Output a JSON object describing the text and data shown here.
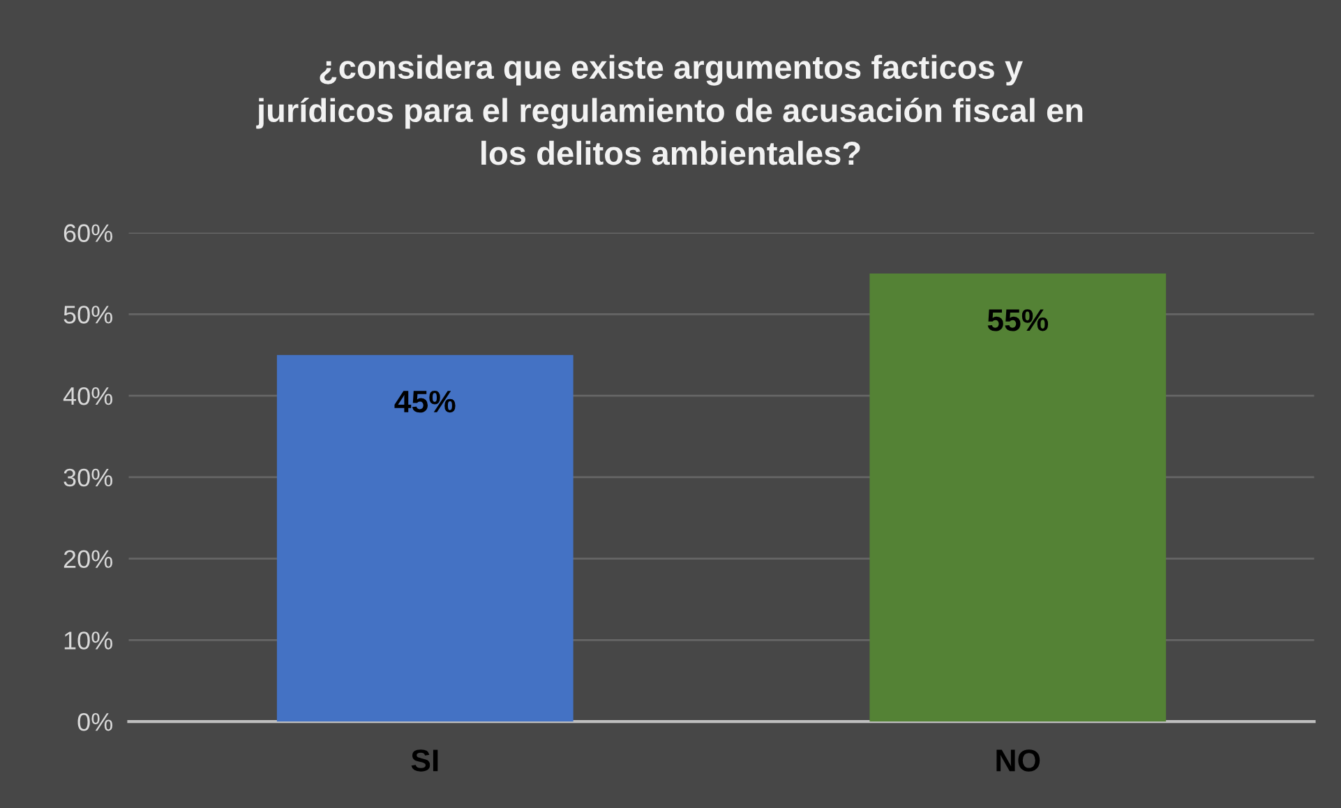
{
  "chart_data": {
    "type": "bar",
    "title": "¿considera que existe argumentos facticos y\njurídicos para el regulamiento de acusación fiscal en\nlos delitos ambientales?",
    "categories": [
      "SI",
      "NO"
    ],
    "values": [
      45,
      55
    ],
    "colors": [
      "#4472c4",
      "#548235"
    ],
    "value_labels": [
      "45%",
      "55%"
    ],
    "ylim": [
      0,
      60
    ],
    "yticks": [
      {
        "value": 0,
        "label": "0%"
      },
      {
        "value": 10,
        "label": "10%"
      },
      {
        "value": 20,
        "label": "20%"
      },
      {
        "value": 30,
        "label": "30%"
      },
      {
        "value": 40,
        "label": "40%"
      },
      {
        "value": 50,
        "label": "50%"
      },
      {
        "value": 60,
        "label": "60%"
      }
    ],
    "grid": "y"
  }
}
